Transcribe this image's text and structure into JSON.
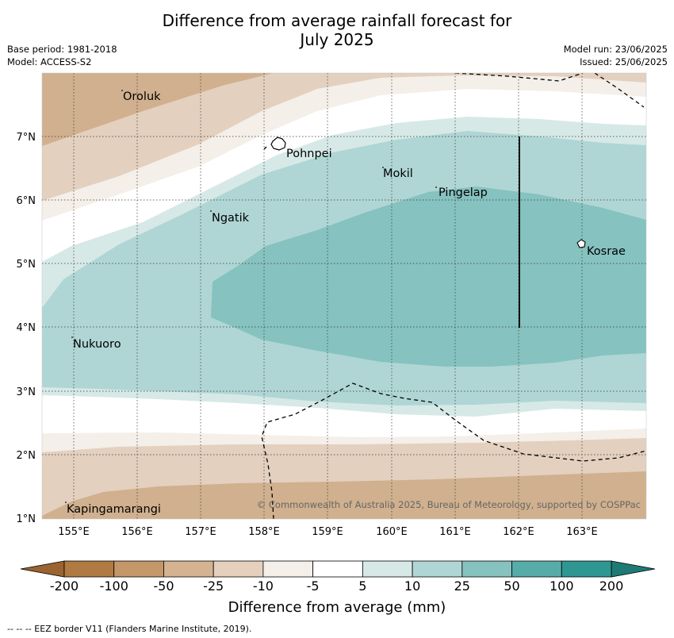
{
  "header": {
    "title_line1": "Difference from average rainfall forecast for",
    "title_line2": "July 2025",
    "base_period": "Base period: 1981-2018",
    "model": "Model: ACCESS-S2",
    "model_run": "Model run: 23/06/2025",
    "issued": "Issued: 25/06/2025"
  },
  "map": {
    "lat_labels": [
      "7°N",
      "6°N",
      "5°N",
      "4°N",
      "3°N",
      "2°N",
      "1°N"
    ],
    "lon_labels": [
      "155°E",
      "156°E",
      "157°E",
      "158°E",
      "159°E",
      "160°E",
      "161°E",
      "162°E",
      "163°E"
    ],
    "places": [
      "Oroluk",
      "Pohnpei",
      "Mokil",
      "Pingelap",
      "Ngatik",
      "Kosrae",
      "Nukuoro",
      "Kapingamarangi"
    ],
    "copyright": "© Commonwealth of Australia 2025, Bureau of Meteorology, supported by COSPPac",
    "colors": {
      "brown_3": "#d0b08e",
      "brown_2": "#e3d0bf",
      "brown_1": "#f4efe8",
      "teal_1": "#d6e9e7",
      "teal_2": "#afd6d4",
      "teal_3": "#86c2bf"
    }
  },
  "colorbar": {
    "labels": [
      "-200",
      "-100",
      "-50",
      "-25",
      "-10",
      "-5",
      "5",
      "10",
      "25",
      "50",
      "100",
      "200"
    ],
    "colors": [
      "#b07a42",
      "#c4976a",
      "#d4b391",
      "#e4d0bd",
      "#f4efe8",
      "#ffffff",
      "#d6e9e7",
      "#afd6d4",
      "#86c2bf",
      "#57aca8",
      "#2f9792"
    ],
    "extend_low_color": "#9a6330",
    "extend_high_color": "#1e7a75",
    "title": "Difference from average (mm)"
  },
  "footer": {
    "eez_note": "--  --  -- EEZ border V11 (Flanders Marine Institute, 2019)."
  }
}
